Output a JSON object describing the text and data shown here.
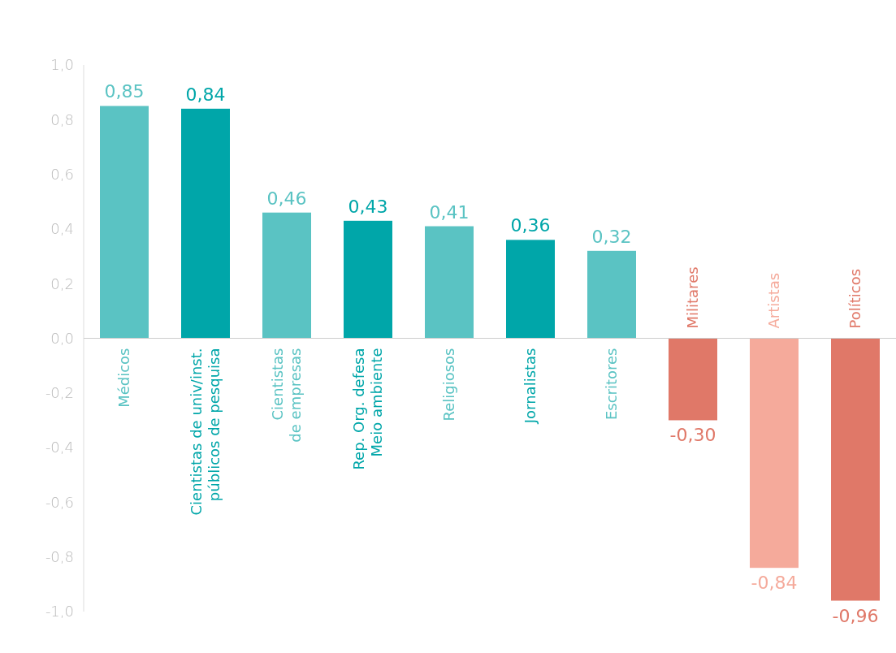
{
  "chart_data": {
    "type": "bar",
    "categories": [
      "Médicos",
      "Cientistas de univ/inst.\npúblicos de pesquisa",
      "Cientistas\nde empresas",
      "Rep. Org. defesa\nMeio ambiente",
      "Religiosos",
      "Jornalistas",
      "Escritores",
      "Militares",
      "Artistas",
      "Políticos"
    ],
    "values": [
      0.85,
      0.84,
      0.46,
      0.43,
      0.41,
      0.36,
      0.32,
      -0.3,
      -0.84,
      -0.96
    ],
    "colors": [
      "#5ac3c3",
      "#00a6a9",
      "#5ac3c3",
      "#00a6a9",
      "#5ac3c3",
      "#00a6a9",
      "#5ac3c3",
      "#e07868",
      "#f5aa9b",
      "#e07868"
    ],
    "value_labels": [
      "0,85",
      "0,84",
      "0,46",
      "0,43",
      "0,41",
      "0,36",
      "0,32",
      "-0,30",
      "-0,84",
      "-0,96"
    ],
    "ylim": [
      -1,
      1
    ],
    "yticks": [
      {
        "value": 1,
        "label": "1,0"
      },
      {
        "value": 0.8,
        "label": "0,8"
      },
      {
        "value": 0.6,
        "label": "0,6"
      },
      {
        "value": 0.4,
        "label": "0,4"
      },
      {
        "value": 0.2,
        "label": "0,2"
      },
      {
        "value": 0,
        "label": "0,0"
      },
      {
        "value": -0.2,
        "label": "-0,2"
      },
      {
        "value": -0.4,
        "label": "-0,4"
      },
      {
        "value": -0.6,
        "label": "-0,6"
      },
      {
        "value": -0.8,
        "label": "-0,8"
      },
      {
        "value": -1,
        "label": "-1,0"
      }
    ]
  }
}
